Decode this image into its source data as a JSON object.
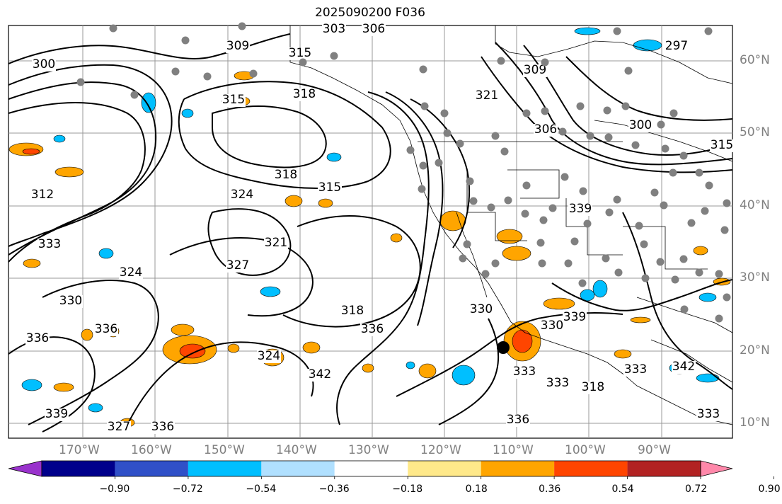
{
  "title": "2025090200 F036",
  "map": {
    "lon_labels": [
      "170°W",
      "160°W",
      "150°W",
      "140°W",
      "130°W",
      "120°W",
      "110°W",
      "100°W",
      "90°W"
    ],
    "lat_labels": [
      "60°N",
      "50°N",
      "40°N",
      "30°N",
      "20°N",
      "10°N"
    ],
    "contour_labels": [
      "303",
      "306",
      "309",
      "315",
      "300",
      "318",
      "315",
      "297",
      "309",
      "321",
      "300",
      "306",
      "312",
      "318",
      "315",
      "324",
      "333",
      "330",
      "321",
      "327",
      "324",
      "318",
      "336",
      "339",
      "330",
      "330",
      "324",
      "342",
      "333",
      "333",
      "318",
      "333",
      "342",
      "333",
      "336",
      "336",
      "327",
      "336",
      "339",
      "336",
      "339",
      "315"
    ],
    "storm_marker": "tropical-cyclone-center"
  },
  "colorbar": {
    "tick_labels": [
      "−0.90",
      "−0.72",
      "−0.54",
      "−0.36",
      "−0.18",
      "0.18",
      "0.36",
      "0.54",
      "0.72",
      "0.90"
    ],
    "colors": [
      "#9932cc",
      "#00008b",
      "#3050c8",
      "#00bfff",
      "#b0e0ff",
      "#ffffff",
      "#ffe98a",
      "#ffa500",
      "#ff4500",
      "#b22222",
      "#ff88aa"
    ]
  },
  "colors": {
    "positive": "#ffa500",
    "positive_strong": "#ff4500",
    "negative": "#00bfff",
    "station_dot": "#808080"
  }
}
